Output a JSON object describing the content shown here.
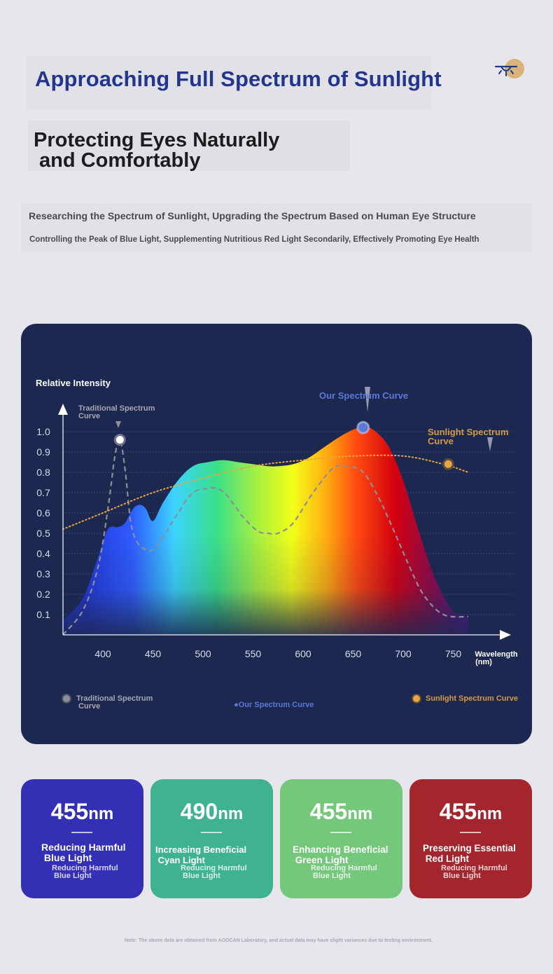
{
  "header": {
    "title": "Approaching Full Spectrum of Sunlight",
    "subtitle": "Protecting Eyes Naturally\n and Comfortably",
    "logo_icon": "sun-lamp-icon"
  },
  "description": {
    "line1": "Researching the Spectrum of Sunlight, Upgrading the Spectrum Based on Human Eye Structure",
    "line2": "Controlling the Peak of Blue Light, Supplementing Nutritious Red Light Secondarily, Effectively Promoting Eye Health"
  },
  "chart_data": {
    "type": "line",
    "ylabel": "Relative Intensity",
    "xlabel": "Wavelength\n(nm)",
    "xlim": [
      360,
      770
    ],
    "ylim": [
      0,
      1.1
    ],
    "xticks": [
      "400",
      "450",
      "500",
      "550",
      "600",
      "650",
      "700",
      "750"
    ],
    "yticks": [
      "1.0",
      "0.9",
      "0.8",
      "0.7",
      "0.6",
      "0.5",
      "0.4",
      "0.3",
      "0.2",
      "0.1"
    ],
    "grid": true,
    "series": [
      {
        "name": "Our Spectrum Curve",
        "style": "filled-rainbow",
        "color": "#5b7ad8",
        "x": [
          360,
          380,
          395,
          405,
          415,
          422,
          430,
          437,
          443,
          450,
          460,
          475,
          490,
          505,
          520,
          535,
          550,
          565,
          575,
          590,
          605,
          620,
          635,
          650,
          660,
          670,
          685,
          700,
          715,
          730,
          745,
          755,
          765
        ],
        "y": [
          0.07,
          0.18,
          0.38,
          0.52,
          0.53,
          0.55,
          0.62,
          0.64,
          0.62,
          0.56,
          0.65,
          0.76,
          0.83,
          0.85,
          0.86,
          0.85,
          0.84,
          0.83,
          0.83,
          0.84,
          0.87,
          0.92,
          0.97,
          1.01,
          1.02,
          1.01,
          0.93,
          0.76,
          0.52,
          0.3,
          0.15,
          0.1,
          0.09
        ],
        "annotation": "Our Spectrum Curve",
        "marker": [
          660,
          1.02
        ]
      },
      {
        "name": "Traditional Spectrum Curve",
        "style": "dashed",
        "color": "#8e8e96",
        "x": [
          360,
          380,
          395,
          405,
          412,
          417,
          422,
          428,
          435,
          443,
          450,
          460,
          475,
          490,
          505,
          515,
          525,
          540,
          555,
          565,
          575,
          590,
          610,
          630,
          645,
          660,
          675,
          690,
          705,
          720,
          740,
          765
        ],
        "y": [
          0.0,
          0.12,
          0.33,
          0.62,
          0.88,
          0.96,
          0.82,
          0.55,
          0.45,
          0.42,
          0.42,
          0.48,
          0.6,
          0.7,
          0.72,
          0.72,
          0.68,
          0.58,
          0.51,
          0.5,
          0.5,
          0.55,
          0.7,
          0.82,
          0.83,
          0.8,
          0.68,
          0.52,
          0.35,
          0.2,
          0.1,
          0.09
        ],
        "annotation": "Traditional Spectrum\n Curve",
        "marker": [
          417,
          0.96
        ]
      },
      {
        "name": "Sunlight Spectrum Curve",
        "style": "dotted",
        "color": "#e8a540",
        "x": [
          360,
          400,
          450,
          500,
          550,
          600,
          650,
          700,
          740,
          765
        ],
        "y": [
          0.52,
          0.6,
          0.7,
          0.77,
          0.83,
          0.86,
          0.88,
          0.88,
          0.84,
          0.8
        ],
        "annotation": "Sunlight Spectrum\n Curve",
        "marker": [
          745,
          0.84
        ]
      }
    ],
    "legend": {
      "placement": "bottom",
      "items": [
        {
          "label": "Traditional Spectrum\n Curve",
          "color": "#8e8e96"
        },
        {
          "label": "●Our Spectrum Curve",
          "color": "#5b7ad8"
        },
        {
          "label": "Sunlight Spectrum Curve",
          "color": "#e8a540"
        }
      ]
    }
  },
  "cards": [
    {
      "value": "455",
      "unit": "nm",
      "label": "Reducing Harmful\n Blue Light",
      "sub": "Reducing Harmful\n Blue Light",
      "color": "#3330b6"
    },
    {
      "value": "490",
      "unit": "nm",
      "label": "Increasing Beneficial\n Cyan Light",
      "sub": "Reducing Harmful\n Blue Light",
      "color": "#3fb391"
    },
    {
      "value": "455",
      "unit": "nm",
      "label": "Enhancing Beneficial\n Green Light",
      "sub": "Reducing Harmful\n Blue Light",
      "color": "#74c77b"
    },
    {
      "value": "455",
      "unit": "nm",
      "label": "Preserving Essential\n Red Light",
      "sub": "Reducing Harmful\n Blue Light",
      "color": "#a3252d"
    }
  ],
  "note": "Note: The above data are obtained from AOOCAN Laboratory, and actual data may have slight variances due to testing environment."
}
